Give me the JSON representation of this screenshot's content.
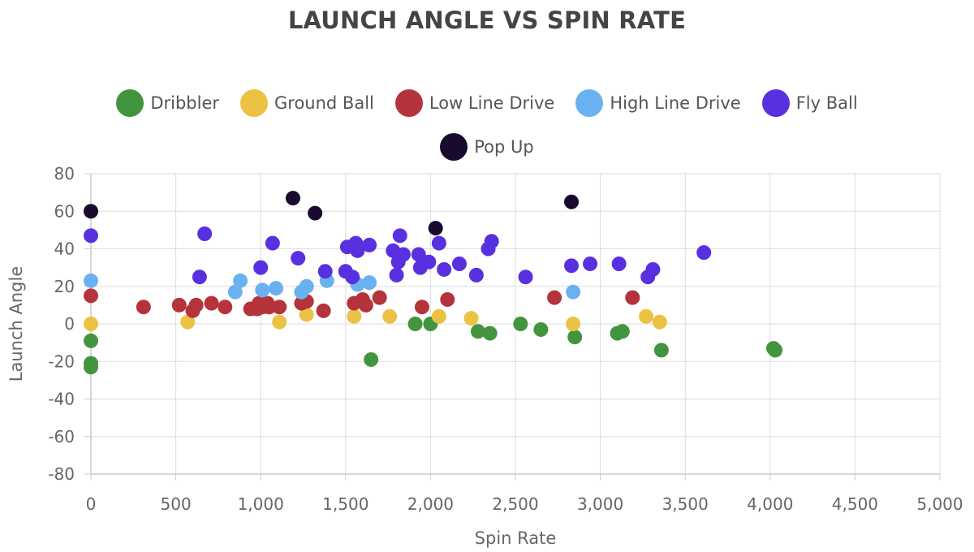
{
  "chart_data": {
    "type": "scatter",
    "title": "LAUNCH ANGLE VS SPIN RATE",
    "xlabel": "Spin Rate",
    "ylabel": "Launch Angle",
    "xlim": [
      0,
      5000
    ],
    "ylim": [
      -80,
      80
    ],
    "x_ticks": [
      "0",
      "500",
      "1,000",
      "1,500",
      "2,000",
      "2,500",
      "3,000",
      "3,500",
      "4,000",
      "4,500",
      "5,000"
    ],
    "y_ticks": [
      "-80",
      "-60",
      "-40",
      "-20",
      "0",
      "20",
      "40",
      "60",
      "80"
    ],
    "grid": true,
    "legend_position": "top",
    "series": [
      {
        "name": "Dribbler",
        "color": "#43943e",
        "points": [
          [
            0,
            -9
          ],
          [
            0,
            -21
          ],
          [
            0,
            -23
          ],
          [
            1650,
            -19
          ],
          [
            1910,
            0
          ],
          [
            2000,
            0
          ],
          [
            2280,
            -4
          ],
          [
            2350,
            -5
          ],
          [
            2530,
            0
          ],
          [
            2650,
            -3
          ],
          [
            2850,
            -7
          ],
          [
            3100,
            -5
          ],
          [
            3130,
            -4
          ],
          [
            3360,
            -14
          ],
          [
            4020,
            -13
          ],
          [
            4030,
            -14
          ]
        ]
      },
      {
        "name": "Ground Ball",
        "color": "#ecc244",
        "points": [
          [
            0,
            0
          ],
          [
            570,
            1
          ],
          [
            1110,
            1
          ],
          [
            1270,
            5
          ],
          [
            1550,
            4
          ],
          [
            1760,
            4
          ],
          [
            2050,
            4
          ],
          [
            2240,
            3
          ],
          [
            2840,
            0
          ],
          [
            3270,
            4
          ],
          [
            3350,
            1
          ]
        ]
      },
      {
        "name": "Low Line Drive",
        "color": "#b5333a",
        "points": [
          [
            0,
            15
          ],
          [
            310,
            9
          ],
          [
            520,
            10
          ],
          [
            600,
            7
          ],
          [
            620,
            10
          ],
          [
            710,
            11
          ],
          [
            790,
            9
          ],
          [
            940,
            8
          ],
          [
            980,
            8
          ],
          [
            990,
            11
          ],
          [
            1010,
            9
          ],
          [
            1040,
            11
          ],
          [
            1050,
            9
          ],
          [
            1110,
            9
          ],
          [
            1240,
            11
          ],
          [
            1270,
            12
          ],
          [
            1370,
            7
          ],
          [
            1550,
            11
          ],
          [
            1600,
            13
          ],
          [
            1620,
            10
          ],
          [
            1700,
            14
          ],
          [
            1950,
            9
          ],
          [
            2100,
            13
          ],
          [
            2730,
            14
          ],
          [
            3190,
            14
          ]
        ]
      },
      {
        "name": "High Line Drive",
        "color": "#6ab2ef",
        "points": [
          [
            0,
            23
          ],
          [
            850,
            17
          ],
          [
            880,
            23
          ],
          [
            1010,
            18
          ],
          [
            1090,
            19
          ],
          [
            1240,
            17
          ],
          [
            1270,
            20
          ],
          [
            1390,
            23
          ],
          [
            1570,
            21
          ],
          [
            1640,
            22
          ],
          [
            2840,
            17
          ]
        ]
      },
      {
        "name": "Fly Ball",
        "color": "#5930e0",
        "points": [
          [
            0,
            47
          ],
          [
            640,
            25
          ],
          [
            670,
            48
          ],
          [
            1000,
            30
          ],
          [
            1070,
            43
          ],
          [
            1220,
            35
          ],
          [
            1380,
            28
          ],
          [
            1500,
            28
          ],
          [
            1510,
            41
          ],
          [
            1540,
            25
          ],
          [
            1560,
            43
          ],
          [
            1570,
            39
          ],
          [
            1640,
            42
          ],
          [
            1780,
            39
          ],
          [
            1800,
            26
          ],
          [
            1810,
            33
          ],
          [
            1820,
            47
          ],
          [
            1840,
            37
          ],
          [
            1930,
            37
          ],
          [
            1940,
            30
          ],
          [
            1990,
            33
          ],
          [
            2050,
            43
          ],
          [
            2080,
            29
          ],
          [
            2170,
            32
          ],
          [
            2270,
            26
          ],
          [
            2340,
            40
          ],
          [
            2360,
            44
          ],
          [
            2560,
            25
          ],
          [
            2830,
            31
          ],
          [
            2940,
            32
          ],
          [
            3110,
            32
          ],
          [
            3280,
            25
          ],
          [
            3310,
            29
          ],
          [
            3610,
            38
          ]
        ]
      },
      {
        "name": "Pop Up",
        "color": "#1a0a2e",
        "points": [
          [
            0,
            60
          ],
          [
            1190,
            67
          ],
          [
            1320,
            59
          ],
          [
            2030,
            51
          ],
          [
            2830,
            65
          ]
        ]
      }
    ]
  }
}
